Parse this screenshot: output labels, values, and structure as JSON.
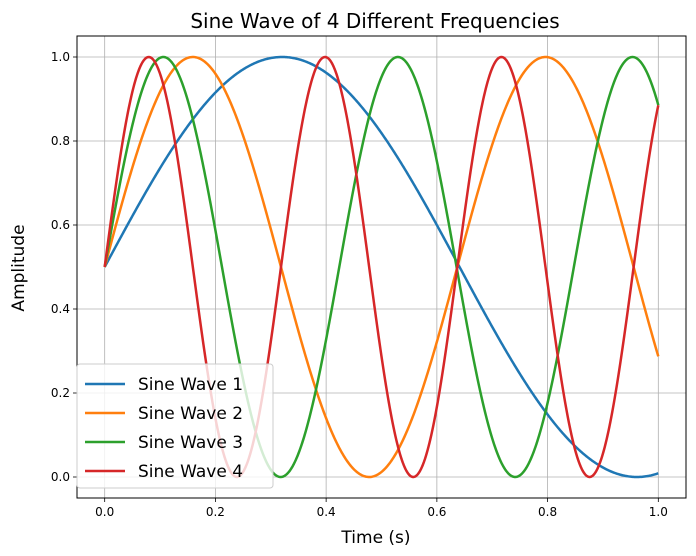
{
  "chart_data": {
    "type": "line",
    "title": "Sine Wave of 4 Different Frequencies",
    "xlabel": "Time (s)",
    "ylabel": "Amplitude",
    "xlim": [
      -0.05,
      1.05
    ],
    "ylim": [
      -0.05,
      1.05
    ],
    "xticks": [
      0.0,
      0.2,
      0.4,
      0.6,
      0.8,
      1.0
    ],
    "xtick_labels": [
      "0.0",
      "0.2",
      "0.4",
      "0.6",
      "0.8",
      "1.0"
    ],
    "yticks": [
      0.0,
      0.2,
      0.4,
      0.6,
      0.8,
      1.0
    ],
    "ytick_labels": [
      "0.0",
      "0.2",
      "0.4",
      "0.6",
      "0.8",
      "1.0"
    ],
    "grid": true,
    "legend_position": "lower-left",
    "formula": "0.5 + 0.5*sin(2*pi*f*t)",
    "series": [
      {
        "name": "Sine Wave 1",
        "frequency": 0.78,
        "color": "#1f77b4"
      },
      {
        "name": "Sine Wave 2",
        "frequency": 1.57,
        "color": "#ff7f0e"
      },
      {
        "name": "Sine Wave 3",
        "frequency": 2.36,
        "color": "#2ca02c"
      },
      {
        "name": "Sine Wave 4",
        "frequency": 3.14,
        "color": "#d62728"
      }
    ]
  }
}
